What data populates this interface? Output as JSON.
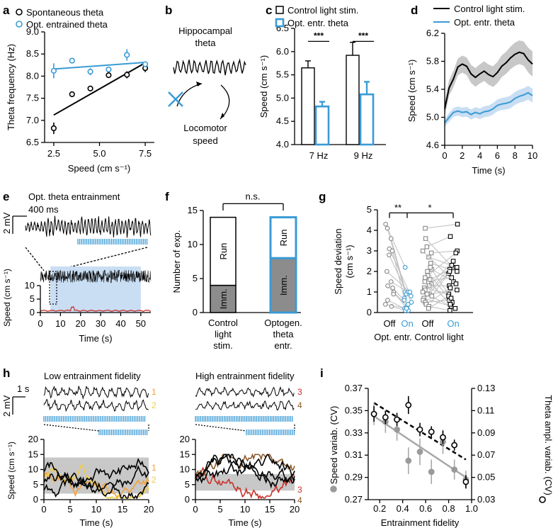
{
  "colors": {
    "black": "#000000",
    "blue": "#3a9bd5",
    "lightblue": "#c9def3",
    "gray": "#9a9a9a",
    "shade": "#c8c8c8",
    "orange": "#f2a23a",
    "yellow": "#f2cc44",
    "red": "#c8312a",
    "brown": "#8a5a2b",
    "lineGray": "#bdbdbd"
  },
  "panel_labels": [
    "a",
    "b",
    "c",
    "d",
    "e",
    "f",
    "g",
    "h",
    "i"
  ],
  "chart_data": [
    {
      "panel": "a",
      "type": "scatter",
      "xlabel": "Speed (cm s⁻¹)",
      "ylabel": "Theta frequency (Hz)",
      "xlim": [
        2,
        8
      ],
      "ylim": [
        6.5,
        9.0
      ],
      "xticks": [
        2.5,
        5.0,
        7.5
      ],
      "xtick_labels": [
        "2.5",
        "5.0",
        "7.5"
      ],
      "yticks": [
        6.5,
        7.0,
        7.5,
        8.0,
        8.5,
        9.0
      ],
      "ytick_labels": [
        "6.5",
        "7.0",
        "7.5",
        "8.0",
        "8.5",
        "9.0"
      ],
      "series": [
        {
          "name": "Spontaneous theta",
          "color": "#000000",
          "x": [
            2.5,
            3.5,
            4.5,
            5.5,
            6.5,
            7.5
          ],
          "y": [
            6.82,
            7.59,
            7.72,
            8.02,
            8.03,
            8.18
          ],
          "err": [
            0.13,
            0.06,
            0.06,
            0.06,
            0.08,
            0.09
          ],
          "fit": [
            [
              2.5,
              7.12
            ],
            [
              7.5,
              8.3
            ]
          ]
        },
        {
          "name": "Opt. entrained theta",
          "color": "#3a9bd5",
          "x": [
            2.5,
            3.5,
            4.5,
            5.5,
            6.5,
            7.5
          ],
          "y": [
            8.12,
            8.35,
            8.1,
            8.15,
            8.48,
            8.27
          ],
          "err": [
            0.17,
            0.06,
            0.08,
            0.06,
            0.13,
            0.0
          ],
          "fit": [
            [
              2.5,
              8.16
            ],
            [
              7.5,
              8.31
            ]
          ]
        }
      ]
    },
    {
      "panel": "b",
      "type": "diagram",
      "title_lines": [
        "Hippocampal",
        "theta"
      ],
      "bottom_lines": [
        "Locomotor",
        "speed"
      ]
    },
    {
      "panel": "c",
      "type": "bar",
      "ylabel": "Speed (cm s⁻¹)",
      "ylim": [
        4.0,
        6.5
      ],
      "yticks": [
        4.0,
        4.5,
        5.0,
        5.5,
        6.0,
        6.5
      ],
      "ytick_labels": [
        "4.0",
        "4.5",
        "5.0",
        "5.5",
        "6.0",
        "6.5"
      ],
      "categories": [
        "7 Hz",
        "9 Hz"
      ],
      "series": [
        {
          "name": "Control light stim.",
          "color": "#000000",
          "values": [
            5.65,
            5.92
          ],
          "err": [
            0.15,
            0.28
          ]
        },
        {
          "name": "Opt. entr. theta",
          "color": "#3a9bd5",
          "values": [
            4.82,
            5.08
          ],
          "err": [
            0.1,
            0.27
          ]
        }
      ],
      "annotations": [
        "***",
        "***"
      ]
    },
    {
      "panel": "d",
      "type": "line",
      "xlabel": "Time (s)",
      "ylabel": "Speed (cm s⁻¹)",
      "xlim": [
        0,
        10
      ],
      "ylim": [
        4.6,
        6.2
      ],
      "xticks": [
        0,
        2,
        4,
        6,
        8,
        10
      ],
      "yticks": [
        4.6,
        5.0,
        5.4,
        5.8,
        6.2
      ],
      "ytick_labels": [
        "4.6",
        "5.0",
        "5.4",
        "5.8",
        "6.2"
      ],
      "series": [
        {
          "name": "Control light stim.",
          "color": "#000000",
          "x": [
            0,
            0.5,
            1,
            1.5,
            2,
            2.5,
            3,
            3.5,
            4,
            4.5,
            5,
            5.5,
            6,
            6.5,
            7,
            7.5,
            8,
            8.5,
            9,
            9.5,
            10
          ],
          "y": [
            5.12,
            5.42,
            5.55,
            5.72,
            5.76,
            5.73,
            5.62,
            5.57,
            5.62,
            5.66,
            5.61,
            5.58,
            5.64,
            5.73,
            5.78,
            5.85,
            5.9,
            5.93,
            5.91,
            5.82,
            5.76
          ],
          "band": 0.18
        },
        {
          "name": "Opt. entr. theta",
          "color": "#3a9bd5",
          "x": [
            0,
            0.5,
            1,
            1.5,
            2,
            2.5,
            3,
            3.5,
            4,
            4.5,
            5,
            5.5,
            6,
            6.5,
            7,
            7.5,
            8,
            8.5,
            9,
            9.5,
            10
          ],
          "y": [
            4.92,
            5.0,
            5.07,
            5.09,
            5.07,
            5.08,
            5.04,
            5.07,
            5.05,
            5.08,
            5.09,
            5.12,
            5.17,
            5.19,
            5.2,
            5.22,
            5.27,
            5.3,
            5.32,
            5.35,
            5.31
          ],
          "band": 0.1
        }
      ]
    },
    {
      "panel": "e",
      "type": "line",
      "title": "Opt. theta entrainment",
      "scale_time": "400 ms",
      "scale_volt": "2 mV",
      "ylabel": "Speed (cm s⁻¹)",
      "xlabel": "Time (s)",
      "xlim": [
        0,
        55
      ],
      "ylim": [
        0,
        10
      ],
      "xticks": [
        0,
        10,
        20,
        30,
        40,
        50
      ],
      "yticks": [
        0,
        5,
        10
      ],
      "stim_window": [
        5,
        50
      ]
    },
    {
      "panel": "f",
      "type": "bar",
      "ylabel": "Number of exp.",
      "ylim": [
        0,
        15
      ],
      "yticks": [
        0,
        5,
        10,
        15
      ],
      "categories": [
        [
          "Control",
          "light",
          "stim."
        ],
        [
          "Optogen.",
          "theta",
          "entr."
        ]
      ],
      "stacked": [
        {
          "run": 10,
          "imm": 4,
          "outline": "#000000"
        },
        {
          "run": 6,
          "imm": 8,
          "outline": "#3a9bd5"
        }
      ],
      "labels": {
        "run": "Run",
        "imm": "Imm."
      },
      "annotation": "n.s."
    },
    {
      "panel": "g",
      "type": "scatter",
      "ylabel": "Speed deviation (cm s⁻¹)",
      "ylim": [
        0,
        5
      ],
      "yticks": [
        0,
        1,
        2,
        3,
        4,
        5
      ],
      "categories": [
        "Off",
        "On",
        "Off",
        "On"
      ],
      "groups": [
        "Opt. entr.",
        "Control light"
      ],
      "pairs_opt": [
        [
          4.3,
          2.2
        ],
        [
          4.1,
          1.0
        ],
        [
          3.6,
          0.9
        ],
        [
          3.1,
          0.8
        ],
        [
          3.0,
          0.7
        ],
        [
          2.8,
          0.5
        ],
        [
          1.5,
          1.0
        ],
        [
          1.3,
          0.3
        ],
        [
          1.2,
          0.6
        ],
        [
          1.0,
          0.1
        ],
        [
          0.9,
          0.4
        ],
        [
          0.6,
          0.2
        ],
        [
          0.3,
          0.1
        ],
        [
          2.0,
          1.0
        ],
        [
          0.4,
          0.2
        ]
      ],
      "pairs_ctrl": [
        [
          4.1,
          4.3
        ],
        [
          3.6,
          2.2
        ],
        [
          3.2,
          3.7
        ],
        [
          2.9,
          3.0
        ],
        [
          2.7,
          2.2
        ],
        [
          2.4,
          2.0
        ],
        [
          2.1,
          1.5
        ],
        [
          2.0,
          0.5
        ],
        [
          1.8,
          2.9
        ],
        [
          1.6,
          2.1
        ],
        [
          1.5,
          1.7
        ],
        [
          1.4,
          0.4
        ],
        [
          1.3,
          1.3
        ],
        [
          1.2,
          0.9
        ],
        [
          1.1,
          2.5
        ],
        [
          1.0,
          0.2
        ],
        [
          0.9,
          1.1
        ],
        [
          0.8,
          1.9
        ],
        [
          0.7,
          0.3
        ],
        [
          0.6,
          2.0
        ],
        [
          0.5,
          0.6
        ],
        [
          0.4,
          1.2
        ],
        [
          0.3,
          0.1
        ],
        [
          0.2,
          0.8
        ],
        [
          3.0,
          1.4
        ],
        [
          2.2,
          0.7
        ],
        [
          1.7,
          0.4
        ],
        [
          0.9,
          2.3
        ]
      ],
      "annotations": [
        "**",
        "*"
      ]
    },
    {
      "panel": "h",
      "type": "line",
      "titles": [
        "Low entrainment fidelity",
        "High entrainment fidelity"
      ],
      "scale_time": "1 s",
      "scale_volt": "2 mV",
      "ylabel": "Speed (cm s⁻¹)",
      "xlabel": "Time (s)",
      "xlim": [
        0,
        20
      ],
      "ylim": [
        0,
        20
      ],
      "xticks": [
        0,
        5,
        10,
        15,
        20
      ],
      "yticks": [
        0,
        5,
        10,
        15,
        20
      ],
      "trace_labels": [
        "1",
        "2",
        "3",
        "4"
      ],
      "left_band": [
        2,
        14
      ],
      "right_band": [
        3,
        8.5
      ]
    },
    {
      "panel": "i",
      "type": "scatter",
      "xlabel": "Entrainment fidelity",
      "ylabel_left": "Speed variab. (CV)",
      "ylabel_right": "Theta ampl. variab. (CV)",
      "xlim": [
        0.1,
        1.0
      ],
      "ylim_left": [
        0.27,
        0.37
      ],
      "ylim_right": [
        0.03,
        0.13
      ],
      "xticks": [
        0.2,
        0.4,
        0.6,
        0.8,
        1.0
      ],
      "xtick_labels": [
        "0.2",
        "0.4",
        "0.6",
        "0.8",
        "1.0"
      ],
      "yticks_left": [
        0.27,
        0.29,
        0.31,
        0.33,
        0.35,
        0.37
      ],
      "ytick_labels_left": [
        "0.27",
        "0.29",
        "0.31",
        "0.33",
        "0.35",
        "0.37"
      ],
      "yticks_right": [
        0.03,
        0.05,
        0.07,
        0.09,
        0.11,
        0.13
      ],
      "ytick_labels_right": [
        "0.03",
        "0.05",
        "0.07",
        "0.09",
        "0.11",
        "0.13"
      ],
      "speed": {
        "x": [
          0.15,
          0.25,
          0.35,
          0.45,
          0.55,
          0.65,
          0.75,
          0.85,
          0.95
        ],
        "y": [
          0.347,
          0.34,
          0.333,
          0.305,
          0.313,
          0.295,
          0.322,
          0.297,
          0.288
        ],
        "err": [
          0.01,
          0.01,
          0.01,
          0.012,
          0.012,
          0.011,
          0.011,
          0.009,
          0.008
        ]
      },
      "theta": {
        "x": [
          0.15,
          0.25,
          0.35,
          0.45,
          0.55,
          0.65,
          0.75,
          0.85,
          0.95
        ],
        "y": [
          0.107,
          0.104,
          0.102,
          0.115,
          0.093,
          0.091,
          0.086,
          0.079,
          0.046
        ],
        "err": [
          0.007,
          0.006,
          0.006,
          0.008,
          0.006,
          0.005,
          0.006,
          0.005,
          0.006
        ]
      },
      "fit_speed": [
        [
          0.15,
          0.345
        ],
        [
          0.95,
          0.29
        ]
      ],
      "fit_theta": [
        [
          0.15,
          0.117
        ],
        [
          0.95,
          0.066
        ]
      ]
    }
  ]
}
